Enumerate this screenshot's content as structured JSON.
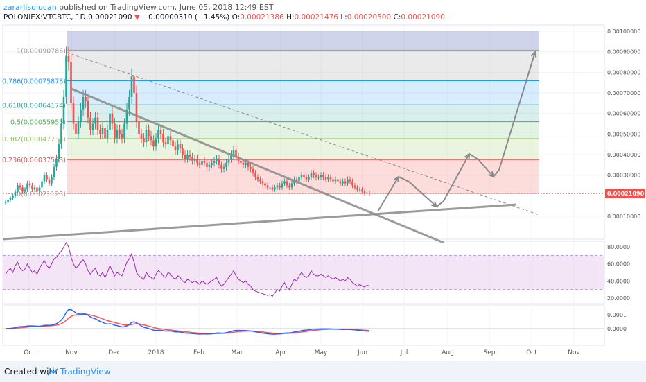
{
  "header": {
    "author": "zararlisolucan",
    "published_text": " published on TradingView.com, June 05, 2018 12:49 EST",
    "symbol": "POLONIEX:VTCBTC, 1D",
    "last": "0.00021090",
    "change": "−0.00000310 (−1.45%)",
    "o_label": "O:",
    "o_value": "0.00021386",
    "h_label": "H:",
    "h_value": "0.00021476",
    "l_label": "L:",
    "l_value": "0.00020500",
    "c_label": "C:",
    "c_value": "0.00021090"
  },
  "footer": {
    "created_with": "Created with",
    "brand": "TradingView"
  },
  "colors": {
    "up": "#26a69a",
    "down": "#ef5350",
    "rsi_line": "#9c27b0",
    "macd_line": "#2962ff",
    "signal_line": "#ff5252",
    "trend_line": "#8a8a8a",
    "price_tag": "#ef5350"
  },
  "chart_data": {
    "type": "candlestick",
    "price_axis_ticks": [
      "0.00100000",
      "0.00090000",
      "0.00080000",
      "0.00070000",
      "0.00060000",
      "0.00050000",
      "0.00040000",
      "0.00030000",
      "0.00010000"
    ],
    "price_axis_values": [
      0.001,
      0.0009,
      0.0008,
      0.0007,
      0.0006,
      0.0005,
      0.0004,
      0.0003,
      0.0001
    ],
    "last_price_tag": "0.00021090",
    "last_price_value": 0.0002109,
    "x_tick_labels": [
      "Oct",
      "Nov",
      "Dec",
      "2018",
      "Feb",
      "Mar",
      "Apr",
      "May",
      "Jun",
      "Jul",
      "Aug",
      "Sep",
      "Oct",
      "Nov"
    ],
    "fib_levels": [
      {
        "label": "1(0.00090786)",
        "value": 0.00090786,
        "color": "#9e9e9e"
      },
      {
        "label": "0.786(0.00075878)",
        "value": 0.00075878,
        "color": "#2196f3"
      },
      {
        "label": "0.618(0.00064174)",
        "value": 0.00064174,
        "color": "#26a69a"
      },
      {
        "label": "0.5(0.00055955)",
        "value": 0.00055955,
        "color": "#4caf50"
      },
      {
        "label": "0.382(0.00047734)",
        "value": 0.00047734,
        "color": "#8bc34a"
      },
      {
        "label": "0.236(0.00037563)",
        "value": 0.00037563,
        "color": "#ef5350"
      },
      {
        "label": "0(0.00021123)",
        "value": 0.00021123,
        "color": "#9e9e9e"
      }
    ],
    "closes": [
      0.00017,
      0.00018,
      0.00019,
      0.0002,
      0.00022,
      0.00025,
      0.00024,
      0.00022,
      0.00023,
      0.00026,
      0.00025,
      0.00023,
      0.00024,
      0.00022,
      0.00024,
      0.00027,
      0.0003,
      0.00028,
      0.00026,
      0.00029,
      0.00034,
      0.00038,
      0.00045,
      0.00055,
      0.00068,
      0.00088,
      0.00085,
      0.00065,
      0.00055,
      0.0005,
      0.00056,
      0.00062,
      0.00068,
      0.00066,
      0.00058,
      0.00052,
      0.00055,
      0.00058,
      0.00052,
      0.0005,
      0.00053,
      0.00048,
      0.00052,
      0.0006,
      0.00055,
      0.00048,
      0.00052,
      0.0005,
      0.00048,
      0.00055,
      0.00062,
      0.00068,
      0.00078,
      0.0007,
      0.00056,
      0.0005,
      0.00048,
      0.00046,
      0.00052,
      0.00049,
      0.00047,
      0.00044,
      0.00048,
      0.00052,
      0.0005,
      0.00046,
      0.00045,
      0.00049,
      0.00047,
      0.00044,
      0.00042,
      0.00045,
      0.00043,
      0.0004,
      0.00038,
      0.0004,
      0.00039,
      0.00037,
      0.00038,
      0.00036,
      0.00035,
      0.00037,
      0.00036,
      0.00034,
      0.00035,
      0.00036,
      0.00037,
      0.00038,
      0.00035,
      0.00033,
      0.00034,
      0.00036,
      0.00038,
      0.0004,
      0.00042,
      0.00039,
      0.00037,
      0.00036,
      0.00035,
      0.00036,
      0.00034,
      0.00033,
      0.00031,
      0.00029,
      0.00028,
      0.00027,
      0.00026,
      0.00025,
      0.00024,
      0.00024,
      0.00023,
      0.00024,
      0.00025,
      0.00024,
      0.00026,
      0.00027,
      0.00025,
      0.00024,
      0.00026,
      0.00028,
      0.00027,
      0.00029,
      0.0003,
      0.00029,
      0.00028,
      0.00029,
      0.00031,
      0.0003,
      0.00029,
      0.00029,
      0.0003,
      0.00029,
      0.00028,
      0.00029,
      0.00028,
      0.00027,
      0.00028,
      0.00027,
      0.00026,
      0.00027,
      0.00026,
      0.00028,
      0.00027,
      0.00025,
      0.00024,
      0.00023,
      0.00023,
      0.00022,
      0.00021,
      0.000215,
      0.00021
    ],
    "rsi": {
      "axis_ticks": [
        "80.0000",
        "60.0000",
        "40.0000",
        "20.0000"
      ],
      "axis_values": [
        80,
        60,
        40,
        20
      ],
      "upper_band": 70,
      "lower_band": 30,
      "values": [
        48,
        52,
        55,
        50,
        58,
        62,
        55,
        52,
        54,
        60,
        55,
        50,
        52,
        48,
        55,
        60,
        64,
        58,
        55,
        60,
        66,
        68,
        72,
        75,
        80,
        85,
        80,
        68,
        60,
        55,
        58,
        62,
        65,
        60,
        52,
        48,
        52,
        55,
        48,
        46,
        50,
        44,
        50,
        58,
        52,
        46,
        50,
        48,
        46,
        54,
        62,
        66,
        72,
        62,
        50,
        46,
        44,
        42,
        50,
        46,
        44,
        42,
        48,
        52,
        50,
        46,
        44,
        50,
        48,
        44,
        42,
        46,
        44,
        40,
        38,
        42,
        40,
        38,
        40,
        38,
        36,
        40,
        38,
        36,
        38,
        40,
        42,
        44,
        38,
        34,
        36,
        40,
        44,
        48,
        52,
        46,
        42,
        40,
        38,
        40,
        36,
        34,
        30,
        28,
        27,
        26,
        25,
        24,
        23,
        24,
        22,
        26,
        30,
        28,
        34,
        38,
        32,
        30,
        36,
        42,
        40,
        46,
        50,
        46,
        44,
        46,
        52,
        48,
        46,
        46,
        48,
        46,
        44,
        46,
        44,
        42,
        44,
        42,
        40,
        42,
        40,
        44,
        42,
        38,
        36,
        34,
        36,
        34,
        33,
        35,
        34
      ]
    },
    "macd": {
      "axis_ticks": [
        "0.0001",
        "0.0000"
      ],
      "axis_values": [
        0.0001,
        0.0
      ]
    }
  }
}
